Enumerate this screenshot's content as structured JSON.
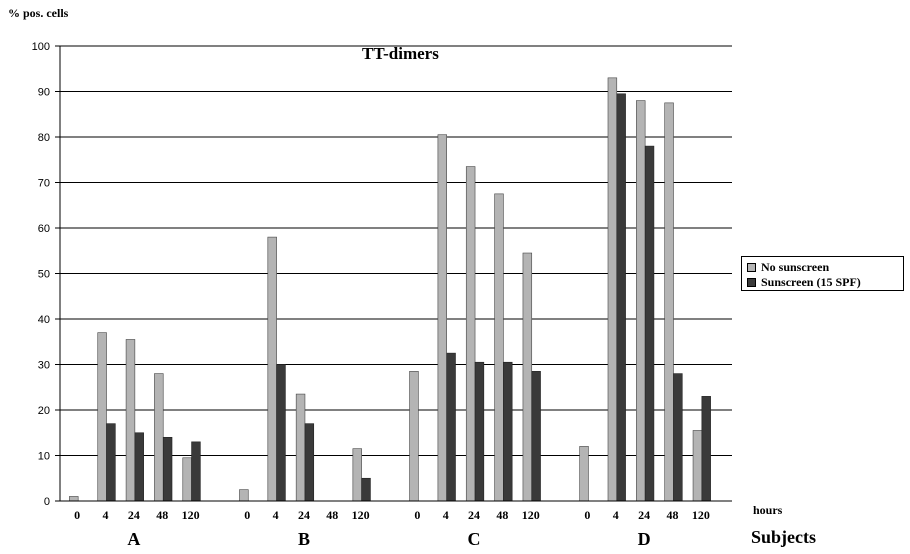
{
  "chart_data": {
    "type": "bar",
    "title": "TT-dimers",
    "ylabel": "% pos. cells",
    "xlabel_hours": "hours",
    "xlabel": "Subjects",
    "ylim": [
      0,
      100
    ],
    "yticks": [
      "0",
      "10",
      "20",
      "30",
      "40",
      "50",
      "60",
      "70",
      "80",
      "90",
      "100"
    ],
    "grid": true,
    "legend_position": "right",
    "colors": {
      "No sunscreen": "#b4b4b4",
      "Sunscreen (15 SPF)": "#3a3a3a"
    },
    "groups": [
      "A",
      "B",
      "C",
      "D"
    ],
    "categories": [
      "0",
      "4",
      "24",
      "48",
      "120"
    ],
    "series": [
      {
        "name": "No sunscreen",
        "values": [
          [
            1,
            37,
            35.5,
            28,
            9.5
          ],
          [
            2.5,
            58,
            23.5,
            0,
            11.5
          ],
          [
            28.5,
            80.5,
            73.5,
            67.5,
            54.5
          ],
          [
            12,
            93,
            88,
            87.5,
            15.5
          ]
        ]
      },
      {
        "name": "Sunscreen (15 SPF)",
        "values": [
          [
            0,
            17,
            15,
            14,
            13
          ],
          [
            0,
            30,
            17,
            0,
            5
          ],
          [
            0,
            32.5,
            30.5,
            30.5,
            28.5
          ],
          [
            0,
            89.5,
            78,
            28,
            23
          ]
        ]
      }
    ]
  }
}
